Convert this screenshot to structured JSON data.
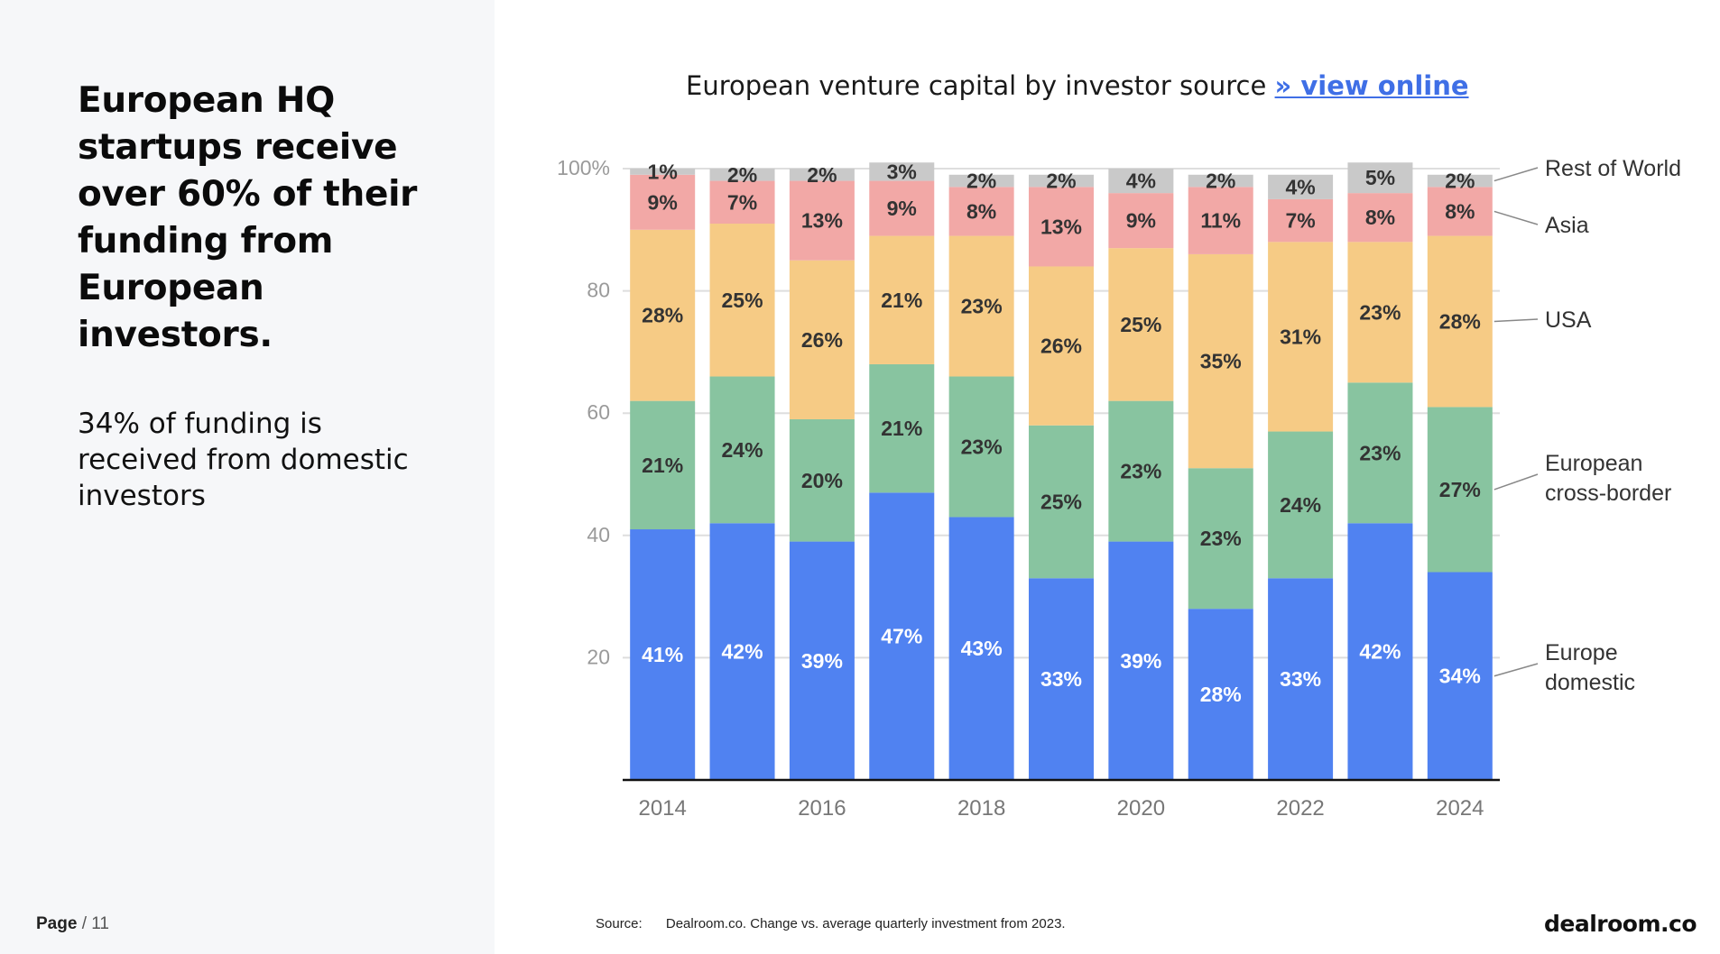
{
  "headline": "European HQ startups receive over 60% of their funding from European investors.",
  "subtext": "34% of funding is received from domestic investors",
  "page": {
    "label": "Page",
    "separator": "/",
    "number": "11"
  },
  "chart_title": {
    "text": "European venture capital by investor source",
    "link_text": "» view online"
  },
  "source": {
    "label": "Source:",
    "text": "Dealroom.co. Change vs. average quarterly investment from 2023."
  },
  "brand": "dealroom.co",
  "chart_data": {
    "type": "bar",
    "stacked": true,
    "title": "European venture capital by investor source",
    "categories": [
      "2014",
      "2015",
      "2016",
      "2017",
      "2018",
      "2019",
      "2020",
      "2021",
      "2022",
      "2023",
      "2024"
    ],
    "x_tick_labels": [
      "2014",
      "",
      "2016",
      "",
      "2018",
      "",
      "2020",
      "",
      "2022",
      "",
      "2024"
    ],
    "y_tick_labels": [
      "20",
      "40",
      "60",
      "80",
      "100%"
    ],
    "ylim": [
      0,
      100
    ],
    "grid": true,
    "legend_placement": "right",
    "series": [
      {
        "name": "Europe domestic",
        "color": "#5082f1",
        "values": [
          41,
          42,
          39,
          47,
          43,
          33,
          39,
          28,
          33,
          42,
          34
        ]
      },
      {
        "name": "European cross-border",
        "color": "#88c4a0",
        "values": [
          21,
          24,
          20,
          21,
          23,
          25,
          23,
          23,
          24,
          23,
          27
        ]
      },
      {
        "name": "USA",
        "color": "#f6cb85",
        "values": [
          28,
          25,
          26,
          21,
          23,
          26,
          25,
          35,
          31,
          23,
          28
        ]
      },
      {
        "name": "Asia",
        "color": "#f2a8a6",
        "values": [
          9,
          7,
          13,
          9,
          8,
          13,
          9,
          11,
          7,
          8,
          8
        ]
      },
      {
        "name": "Rest of World",
        "color": "#c9c9c9",
        "values": [
          1,
          2,
          2,
          3,
          2,
          2,
          4,
          2,
          4,
          5,
          2
        ]
      }
    ]
  }
}
